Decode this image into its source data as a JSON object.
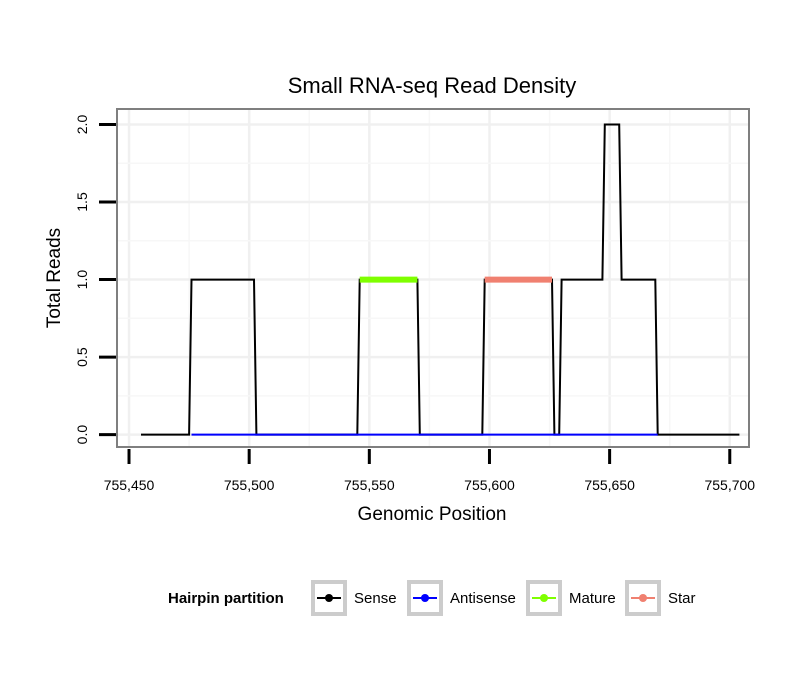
{
  "chart_data": {
    "type": "line",
    "title": "Small RNA-seq Read Density",
    "xlabel": "Genomic Position",
    "ylabel": "Total Reads",
    "xlim": [
      755445,
      755708
    ],
    "ylim": [
      -0.08,
      2.1
    ],
    "xticks": [
      755450,
      755500,
      755550,
      755600,
      755650,
      755700
    ],
    "xtick_labels": [
      "755,450",
      "755,500",
      "755,550",
      "755,600",
      "755,650",
      "755,700"
    ],
    "yticks": [
      0.0,
      0.5,
      1.0,
      1.5,
      2.0
    ],
    "ytick_labels": [
      "0.0",
      "0.5",
      "1.0",
      "1.5",
      "2.0"
    ],
    "grid": true,
    "legend_title": "Hairpin partition",
    "legend_position": "bottom",
    "series": [
      {
        "name": "Sense",
        "color": "#000000",
        "x": [
          755455,
          755475,
          755476,
          755502,
          755503,
          755545,
          755546,
          755570,
          755571,
          755597,
          755598,
          755626,
          755627,
          755629,
          755630,
          755647,
          755648,
          755654,
          755655,
          755669,
          755670,
          755704
        ],
        "y": [
          0,
          0,
          1,
          1,
          0,
          0,
          1,
          1,
          0,
          0,
          1,
          1,
          0,
          0,
          1,
          1,
          2,
          2,
          1,
          1,
          0,
          0
        ]
      },
      {
        "name": "Antisense",
        "color": "#0000FF",
        "x": [
          755476,
          755670
        ],
        "y": [
          0,
          0
        ]
      },
      {
        "name": "Mature",
        "color": "#7FFF00",
        "x": [
          755546,
          755570
        ],
        "y": [
          1,
          1
        ]
      },
      {
        "name": "Star",
        "color": "#F08070",
        "x": [
          755598,
          755626
        ],
        "y": [
          1,
          1
        ]
      }
    ]
  }
}
